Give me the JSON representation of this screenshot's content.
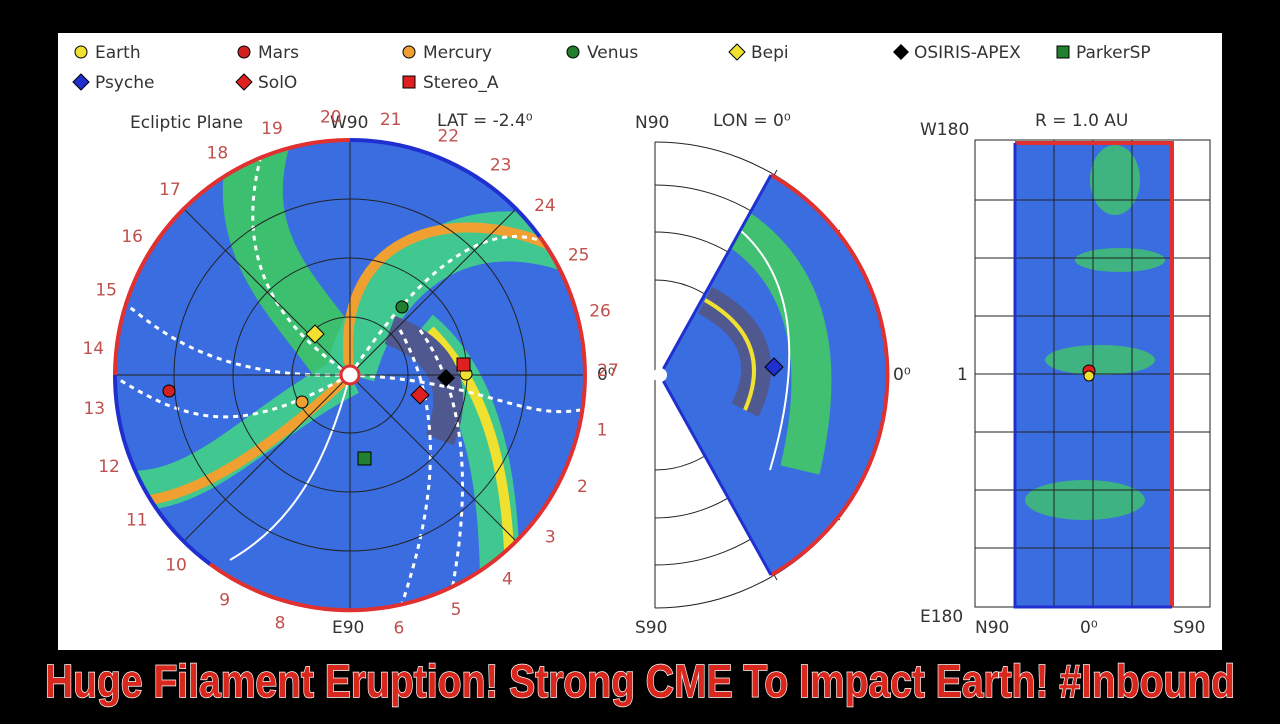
{
  "legend": [
    {
      "name": "Earth"
    },
    {
      "name": "Mars"
    },
    {
      "name": "Mercury"
    },
    {
      "name": "Venus"
    },
    {
      "name": "Bepi"
    },
    {
      "name": "OSIRIS-APEX"
    },
    {
      "name": "ParkerSP"
    },
    {
      "name": "Psyche"
    },
    {
      "name": "SolO"
    },
    {
      "name": "Stereo_A"
    }
  ],
  "ecliptic": {
    "title": "Ecliptic Plane",
    "top_label": "W90",
    "lat": "LAT = -2.4⁰",
    "bottom_label": "E90",
    "right_label": "0⁰",
    "ring_labels": [
      19,
      20,
      21,
      22,
      23,
      24,
      25,
      26,
      27,
      1,
      2,
      3,
      4,
      5,
      6,
      8,
      9,
      10,
      11,
      12,
      13,
      14,
      15,
      16,
      17,
      18
    ]
  },
  "meridional": {
    "top_label": "N90",
    "lon": "LON = 0⁰",
    "bottom_label": "S90",
    "right_label": "0⁰"
  },
  "radial": {
    "top_label": "W180",
    "radius": "R = 1.0 AU",
    "mid_label": "1",
    "bottom_label": "E180",
    "x_labels": [
      "N90",
      "0⁰",
      "S90"
    ]
  },
  "caption": "Huge Filament Eruption! Strong CME To Impact Earth! #Inbound"
}
